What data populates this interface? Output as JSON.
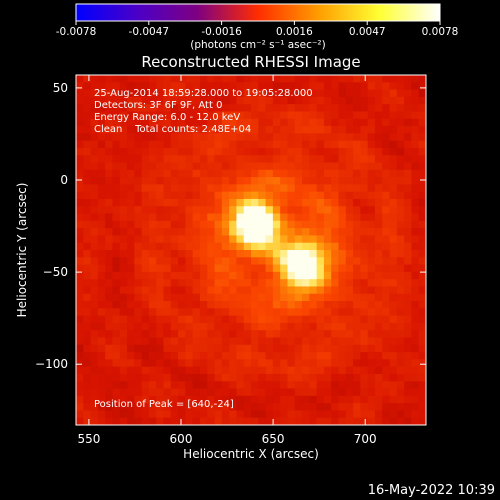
{
  "colorbar": {
    "ticks": [
      "-0.0078",
      "-0.0047",
      "-0.0016",
      "0.0016",
      "0.0047",
      "0.0078"
    ],
    "units_label": "(photons cm⁻² s⁻¹ asec⁻²)",
    "stops": [
      "#0000ff",
      "#4a00c8",
      "#7e0082",
      "#ff2d00",
      "#ff9d00",
      "#ffff33",
      "#ffffff"
    ]
  },
  "title": "Reconstructed RHESSI Image",
  "annotations": {
    "line1": "25-Aug-2014 18:59:28.000 to 19:05:28.000",
    "line2": "Detectors: 3F 6F 9F, Att 0",
    "line3": "Energy Range: 6.0 - 12.0 keV",
    "line4": "Clean    Total counts: 2.48E+04",
    "peak": "Position of Peak = [640,-24]"
  },
  "footer": {
    "timestamp": "16-May-2022 10:39"
  },
  "chart_data": {
    "type": "heatmap",
    "title": "Reconstructed RHESSI Image",
    "xlabel": "Heliocentric X (arcsec)",
    "ylabel": "Heliocentric Y (arcsec)",
    "xlim": [
      543,
      733
    ],
    "ylim": [
      -133,
      57
    ],
    "xticks": [
      550,
      600,
      650,
      700
    ],
    "yticks": [
      50,
      0,
      -50,
      -100
    ],
    "colorbar_range": [
      -0.0078,
      0.0078
    ],
    "sources": [
      {
        "x": 640,
        "y": -24,
        "relative_intensity": 1.0
      },
      {
        "x": 666,
        "y": -46,
        "relative_intensity": 0.92
      }
    ],
    "peak_position": [
      640,
      -24
    ]
  }
}
